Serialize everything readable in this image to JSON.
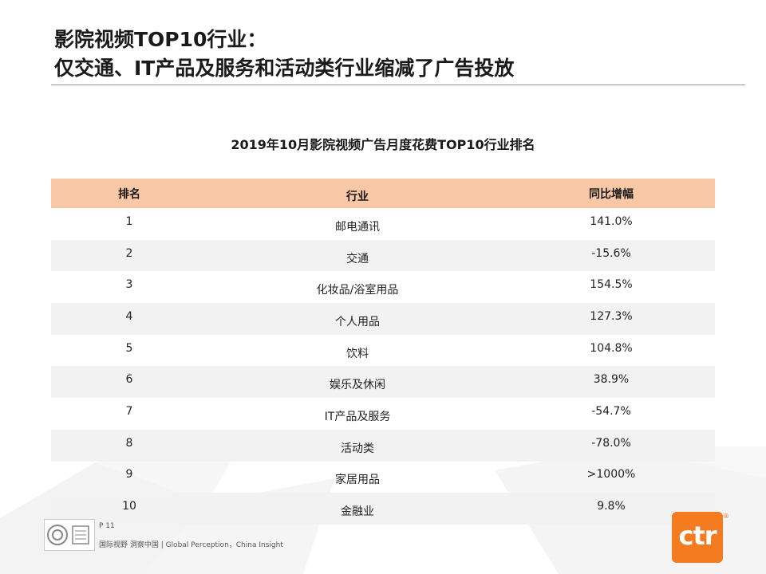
{
  "slide": {
    "title_line1": "影院视频TOP10行业：",
    "title_line2": "仅交通、IT产品及服务和活动类行业缩减了广告投放"
  },
  "table": {
    "title": "2019年10月影院视频广告月度花费TOP10行业排名",
    "headers": {
      "rank": "排名",
      "industry": "行业",
      "change": "同比增幅"
    },
    "rows": [
      {
        "rank": "1",
        "industry": "邮电通讯",
        "change": "141.0%"
      },
      {
        "rank": "2",
        "industry": "交通",
        "change": "-15.6%"
      },
      {
        "rank": "3",
        "industry": "化妆品/浴室用品",
        "change": "154.5%"
      },
      {
        "rank": "4",
        "industry": "个人用品",
        "change": "127.3%"
      },
      {
        "rank": "5",
        "industry": "饮料",
        "change": "104.8%"
      },
      {
        "rank": "6",
        "industry": "娱乐及休闲",
        "change": "38.9%"
      },
      {
        "rank": "7",
        "industry": "IT产品及服务",
        "change": "-54.7%"
      },
      {
        "rank": "8",
        "industry": "活动类",
        "change": "-78.0%"
      },
      {
        "rank": "9",
        "industry": "家居用品",
        "change": ">1000%"
      },
      {
        "rank": "10",
        "industry": "金融业",
        "change": "9.8%"
      }
    ]
  },
  "footer": {
    "page": "P 11",
    "text": "国际视野 洞察中国 | Global Perception，China Insight"
  },
  "logo": {
    "text": "ctr",
    "reg": "®"
  },
  "colors": {
    "header_bg": "#f8c8a6",
    "stripe_bg": "#f2f2f2",
    "brand": "#f47b20"
  }
}
